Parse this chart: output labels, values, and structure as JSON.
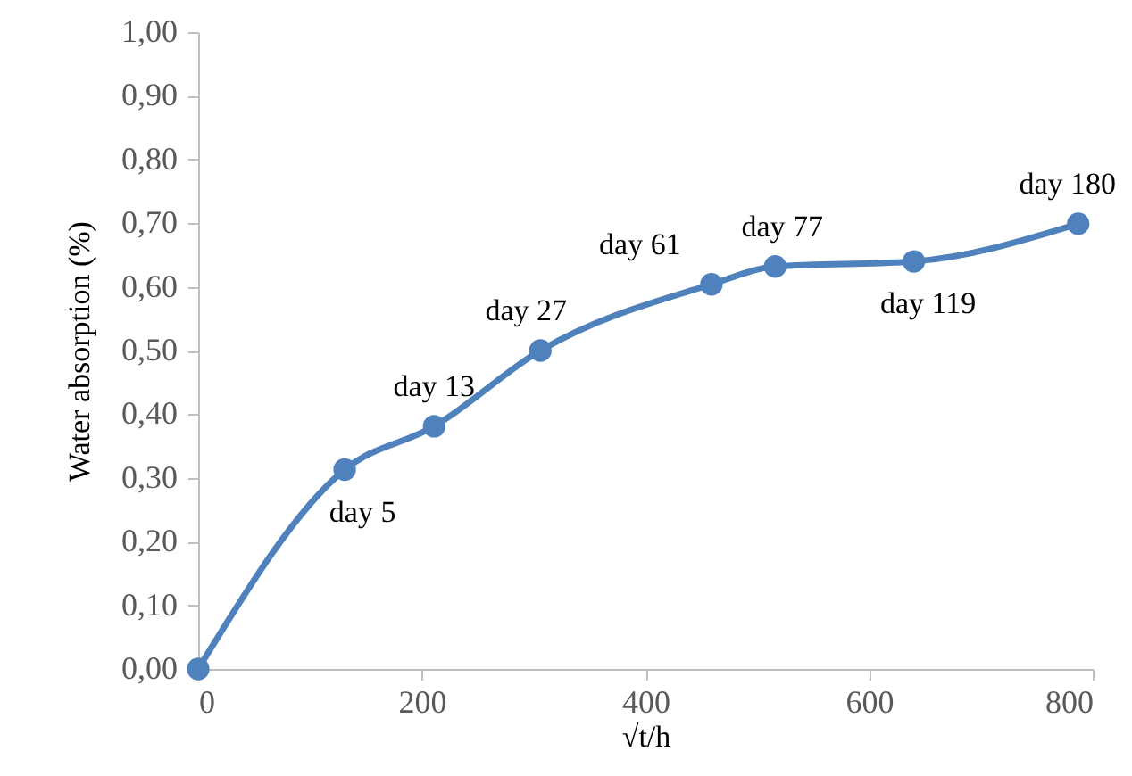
{
  "chart_data": {
    "type": "line",
    "xlabel": "√t/h",
    "ylabel": "Water absorption (%)",
    "x": [
      0,
      131,
      211,
      306,
      459,
      516,
      640,
      787
    ],
    "series": [
      {
        "color": "#4f81bd",
        "values": [
          0,
          0.313,
          0.381,
          0.5,
          0.604,
          0.632,
          0.64,
          0.699
        ]
      }
    ],
    "xlim": [
      0,
      800
    ],
    "xticks": [
      0,
      200,
      400,
      600,
      800
    ],
    "ylim": [
      0,
      1
    ],
    "yticks": [
      {
        "value": 0,
        "label": "0,00"
      },
      {
        "value": 0.1,
        "label": "0,10"
      },
      {
        "value": 0.2,
        "label": "0,20"
      },
      {
        "value": 0.3,
        "label": "0,30"
      },
      {
        "value": 0.4,
        "label": "0,40"
      },
      {
        "value": 0.5,
        "label": "0,50"
      },
      {
        "value": 0.6,
        "label": "0,60"
      },
      {
        "value": 0.7,
        "label": "0,70"
      },
      {
        "value": 0.8,
        "label": "0,80"
      },
      {
        "value": 0.9,
        "label": "0,90"
      },
      {
        "value": 1,
        "label": "1,00"
      }
    ],
    "grid": false,
    "marker": "circle",
    "line_style": "solid",
    "annotations": [
      {
        "text": "day 5",
        "x": 131,
        "y": 0.313
      },
      {
        "text": "day 13",
        "x": 211,
        "y": 0.381
      },
      {
        "text": "day 27",
        "x": 306,
        "y": 0.5
      },
      {
        "text": "day 61",
        "x": 459,
        "y": 0.604
      },
      {
        "text": "day 77",
        "x": 516,
        "y": 0.632
      },
      {
        "text": "day 119",
        "x": 640,
        "y": 0.64
      },
      {
        "text": "day 180",
        "x": 787,
        "y": 0.699
      }
    ]
  }
}
